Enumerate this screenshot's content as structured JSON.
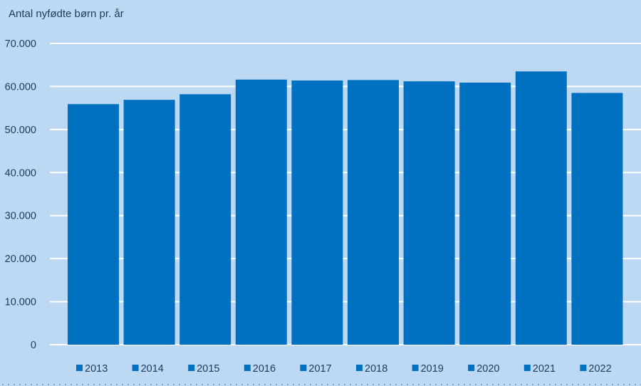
{
  "chart_data": {
    "type": "bar",
    "title": "",
    "ylabel": "Antal nyfødte børn pr. år",
    "xlabel": "",
    "categories": [
      "2013",
      "2014",
      "2015",
      "2016",
      "2017",
      "2018",
      "2019",
      "2020",
      "2021",
      "2022"
    ],
    "series": [
      {
        "values": [
          55900,
          56900,
          58200,
          61600,
          61400,
          61500,
          61200,
          60900,
          63500,
          58500
        ]
      }
    ],
    "ylim": [
      0,
      70000
    ],
    "yticks": [
      0,
      10000,
      20000,
      30000,
      40000,
      50000,
      60000,
      70000
    ],
    "ytick_labels": [
      "0",
      "10.000",
      "20.000",
      "30.000",
      "40.000",
      "50.000",
      "60.000",
      "70.000"
    ],
    "grid": "horizontal",
    "legend_position": "bottom",
    "colors": {
      "bar": "#0070c0",
      "background": "#bcd8f2",
      "grid": "#ffffff",
      "text": "#1f3a5a"
    }
  }
}
